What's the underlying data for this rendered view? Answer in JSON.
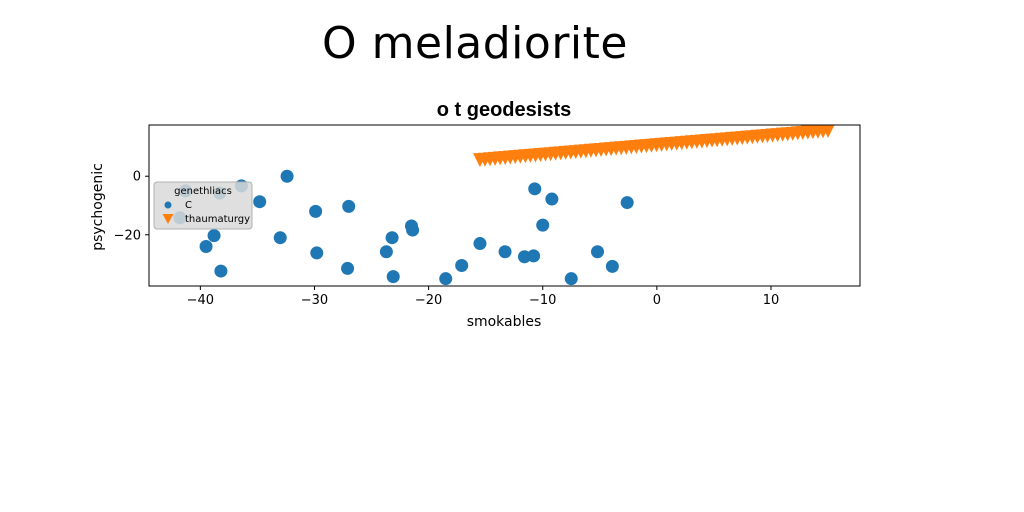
{
  "page": {
    "title": "O meladiorite"
  },
  "chart_data": {
    "type": "scatter",
    "title": "o t geodesists",
    "xlabel": "smokables",
    "ylabel": "psychogenic",
    "xlim": [
      -44.5,
      17.8
    ],
    "ylim": [
      -37.5,
      17.5
    ],
    "xticks": [
      -40,
      -30,
      -20,
      -10,
      0,
      10
    ],
    "yticks": [
      -20,
      0
    ],
    "grid": false,
    "legend": {
      "title": "genethliacs",
      "placement": "center-left",
      "entries": [
        "C",
        "thaumaturgy"
      ]
    },
    "series": [
      {
        "name": "C",
        "marker": "circle",
        "color": "#1f77b4",
        "points": [
          [
            -41.3,
            -5.0
          ],
          [
            -41.8,
            -14.2
          ],
          [
            -38.3,
            -5.8
          ],
          [
            -36.4,
            -3.3
          ],
          [
            -34.8,
            -8.7
          ],
          [
            -32.4,
            0.0
          ],
          [
            -39.5,
            -24.0
          ],
          [
            -38.8,
            -20.3
          ],
          [
            -38.2,
            -32.4
          ],
          [
            -33.0,
            -21.0
          ],
          [
            -29.9,
            -12.0
          ],
          [
            -29.8,
            -26.2
          ],
          [
            -27.0,
            -10.3
          ],
          [
            -27.1,
            -31.5
          ],
          [
            -23.7,
            -25.8
          ],
          [
            -23.2,
            -21.0
          ],
          [
            -23.1,
            -34.3
          ],
          [
            -21.5,
            -17.0
          ],
          [
            -21.4,
            -18.4
          ],
          [
            -18.5,
            -35.0
          ],
          [
            -17.1,
            -30.5
          ],
          [
            -15.5,
            -23.0
          ],
          [
            -13.3,
            -25.8
          ],
          [
            -11.6,
            -27.5
          ],
          [
            -10.8,
            -27.2
          ],
          [
            -10.7,
            -4.3
          ],
          [
            -10.0,
            -16.7
          ],
          [
            -9.2,
            -7.8
          ],
          [
            -7.5,
            -35.0
          ],
          [
            -5.2,
            -25.8
          ],
          [
            -3.9,
            -30.8
          ],
          [
            -2.6,
            -9.0
          ]
        ]
      },
      {
        "name": "thaumaturgy",
        "marker": "triangle_down",
        "color": "#ff7f0e",
        "x_range": [
          -15.5,
          15.0
        ],
        "y_range": [
          5.5,
          15.5
        ],
        "count": 70
      }
    ]
  }
}
